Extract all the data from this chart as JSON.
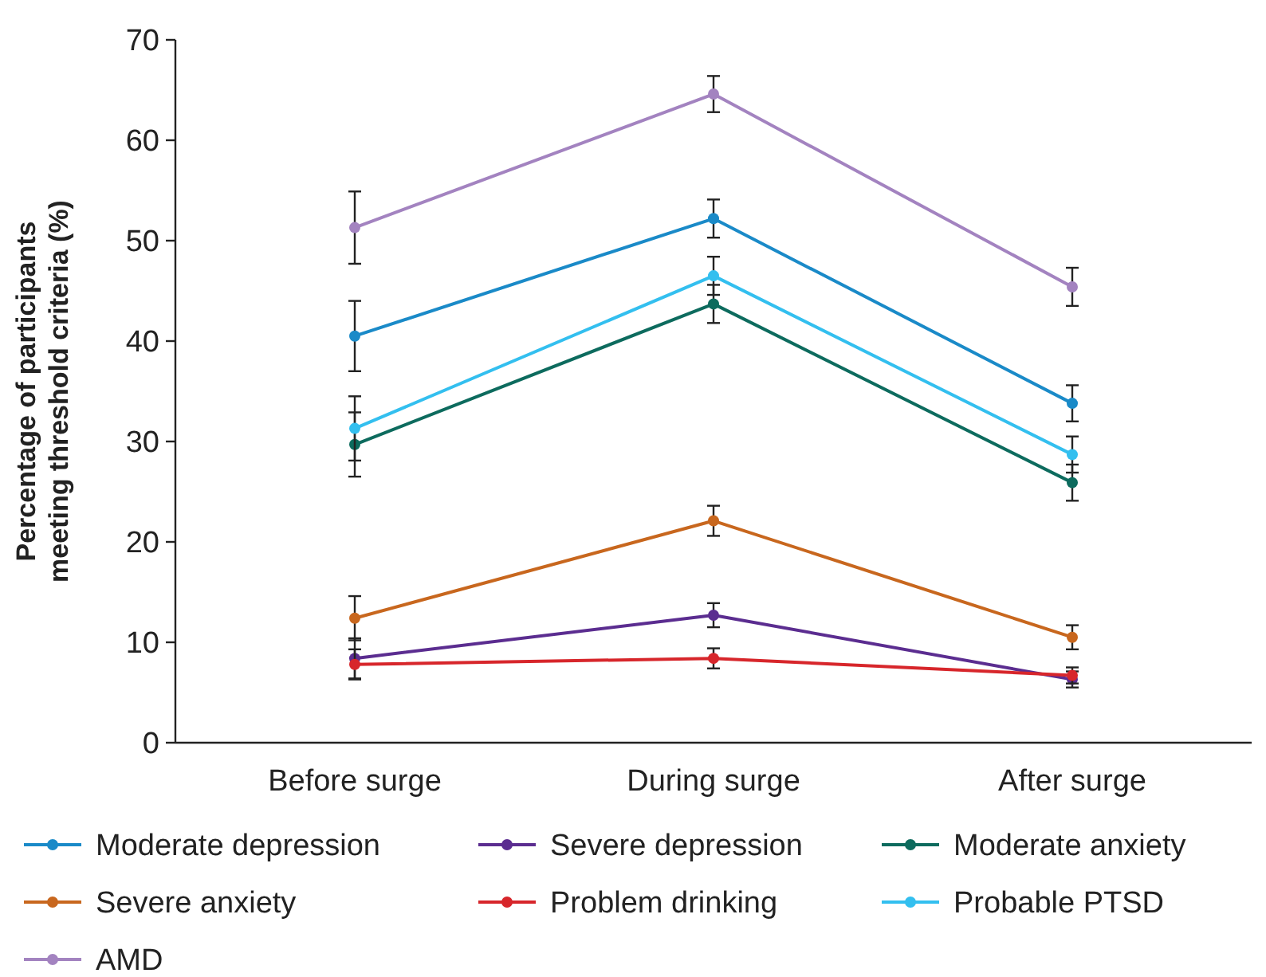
{
  "chart_data": {
    "type": "line",
    "ylabel": "Percentage of participants meeting threshold criteria (%)",
    "categories": [
      "Before surge",
      "During surge",
      "After surge"
    ],
    "ylim": [
      0,
      70
    ],
    "yticks": [
      0,
      10,
      20,
      30,
      40,
      50,
      60,
      70
    ],
    "grid": false,
    "legend": "bottom",
    "marker": "circle",
    "line_style": "solid",
    "series": [
      {
        "name": "Moderate depression",
        "color": "#1a8ac8",
        "values": [
          40.5,
          52.2,
          33.8
        ],
        "errors": [
          3.5,
          1.9,
          1.8
        ]
      },
      {
        "name": "Severe depression",
        "color": "#5b2d90",
        "values": [
          8.4,
          12.7,
          6.3
        ],
        "errors": [
          2,
          1.2,
          0.8
        ]
      },
      {
        "name": "Moderate anxiety",
        "color": "#0d6b5e",
        "values": [
          29.7,
          43.7,
          25.9
        ],
        "errors": [
          3.2,
          1.9,
          1.8
        ]
      },
      {
        "name": "Severe anxiety",
        "color": "#c8671e",
        "values": [
          12.4,
          22.1,
          10.5
        ],
        "errors": [
          2.2,
          1.5,
          1.2
        ]
      },
      {
        "name": "Problem drinking",
        "color": "#d7262b",
        "values": [
          7.8,
          8.4,
          6.7
        ],
        "errors": [
          1.5,
          1,
          0.8
        ]
      },
      {
        "name": "Probable PTSD",
        "color": "#33bfef",
        "values": [
          31.3,
          46.5,
          28.7
        ],
        "errors": [
          3.2,
          1.9,
          1.8
        ]
      },
      {
        "name": "AMD",
        "color": "#a383c0",
        "values": [
          51.3,
          64.6,
          45.4
        ],
        "errors": [
          3.6,
          1.8,
          1.9
        ]
      }
    ]
  }
}
